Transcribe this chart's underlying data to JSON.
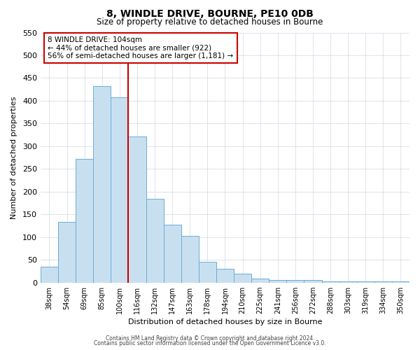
{
  "title": "8, WINDLE DRIVE, BOURNE, PE10 0DB",
  "subtitle": "Size of property relative to detached houses in Bourne",
  "xlabel": "Distribution of detached houses by size in Bourne",
  "ylabel": "Number of detached properties",
  "bar_labels": [
    "38sqm",
    "54sqm",
    "69sqm",
    "85sqm",
    "100sqm",
    "116sqm",
    "132sqm",
    "147sqm",
    "163sqm",
    "178sqm",
    "194sqm",
    "210sqm",
    "225sqm",
    "241sqm",
    "256sqm",
    "272sqm",
    "288sqm",
    "303sqm",
    "319sqm",
    "334sqm",
    "350sqm"
  ],
  "bar_values": [
    35,
    133,
    272,
    432,
    407,
    322,
    184,
    127,
    102,
    46,
    30,
    20,
    8,
    5,
    5,
    5,
    3,
    3,
    3,
    3,
    3
  ],
  "bar_color": "#c8dff0",
  "bar_edge_color": "#6aaed6",
  "vline_color": "#cc0000",
  "annotation_text": "8 WINDLE DRIVE: 104sqm\n← 44% of detached houses are smaller (922)\n56% of semi-detached houses are larger (1,181) →",
  "annotation_box_color": "#ffffff",
  "annotation_box_edge_color": "#cc0000",
  "ylim": [
    0,
    550
  ],
  "yticks": [
    0,
    50,
    100,
    150,
    200,
    250,
    300,
    350,
    400,
    450,
    500,
    550
  ],
  "footer1": "Contains HM Land Registry data © Crown copyright and database right 2024.",
  "footer2": "Contains public sector information licensed under the Open Government Licence v3.0.",
  "background_color": "#ffffff",
  "grid_color": "#d0d8e0"
}
